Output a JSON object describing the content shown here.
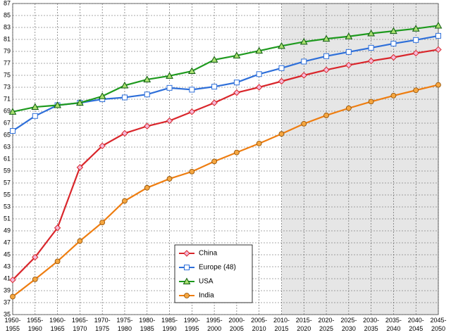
{
  "chart_data": {
    "type": "line",
    "categories": [
      "1950-1955",
      "1955-1960",
      "1960-1965",
      "1965-1970",
      "1970-1975",
      "1975-1980",
      "1980-1985",
      "1985-1990",
      "1990-1995",
      "1995-2000",
      "2000-2005",
      "2005-2010",
      "2010-2015",
      "2015-2020",
      "2020-2025",
      "2025-2030",
      "2030-2035",
      "2035-2040",
      "2040-2045",
      "2045-2050"
    ],
    "series": [
      {
        "name": "China",
        "color": "#d9262b",
        "values": [
          40.8,
          44.6,
          49.5,
          59.6,
          63.2,
          65.3,
          66.5,
          67.4,
          68.9,
          70.4,
          72.1,
          73.0,
          74.0,
          75.0,
          75.9,
          76.7,
          77.4,
          78.0,
          78.7,
          79.3
        ]
      },
      {
        "name": "Europe (48)",
        "color": "#2e6fd9",
        "values": [
          65.7,
          68.2,
          70.0,
          70.4,
          71.0,
          71.3,
          71.8,
          72.9,
          72.6,
          73.1,
          73.8,
          75.2,
          76.2,
          77.3,
          78.2,
          78.9,
          79.6,
          80.3,
          80.9,
          81.6
        ]
      },
      {
        "name": "USA",
        "color": "#1e9a1e",
        "values": [
          68.9,
          69.7,
          70.0,
          70.4,
          71.5,
          73.3,
          74.3,
          74.9,
          75.7,
          77.6,
          78.3,
          79.1,
          79.9,
          80.6,
          81.1,
          81.5,
          82.0,
          82.4,
          82.8,
          83.3
        ]
      },
      {
        "name": "India",
        "color": "#ee7d10",
        "values": [
          38.0,
          40.9,
          43.9,
          47.3,
          50.4,
          54.0,
          56.2,
          57.7,
          58.9,
          60.6,
          62.1,
          63.6,
          65.2,
          66.9,
          68.3,
          69.5,
          70.6,
          71.6,
          72.5,
          73.4
        ]
      }
    ],
    "ylim": [
      35,
      87
    ],
    "yticks": [
      35,
      37,
      39,
      41,
      43,
      45,
      47,
      49,
      51,
      53,
      55,
      57,
      59,
      61,
      63,
      65,
      67,
      69,
      71,
      73,
      75,
      77,
      79,
      81,
      83,
      85,
      87
    ],
    "grid": true
  }
}
